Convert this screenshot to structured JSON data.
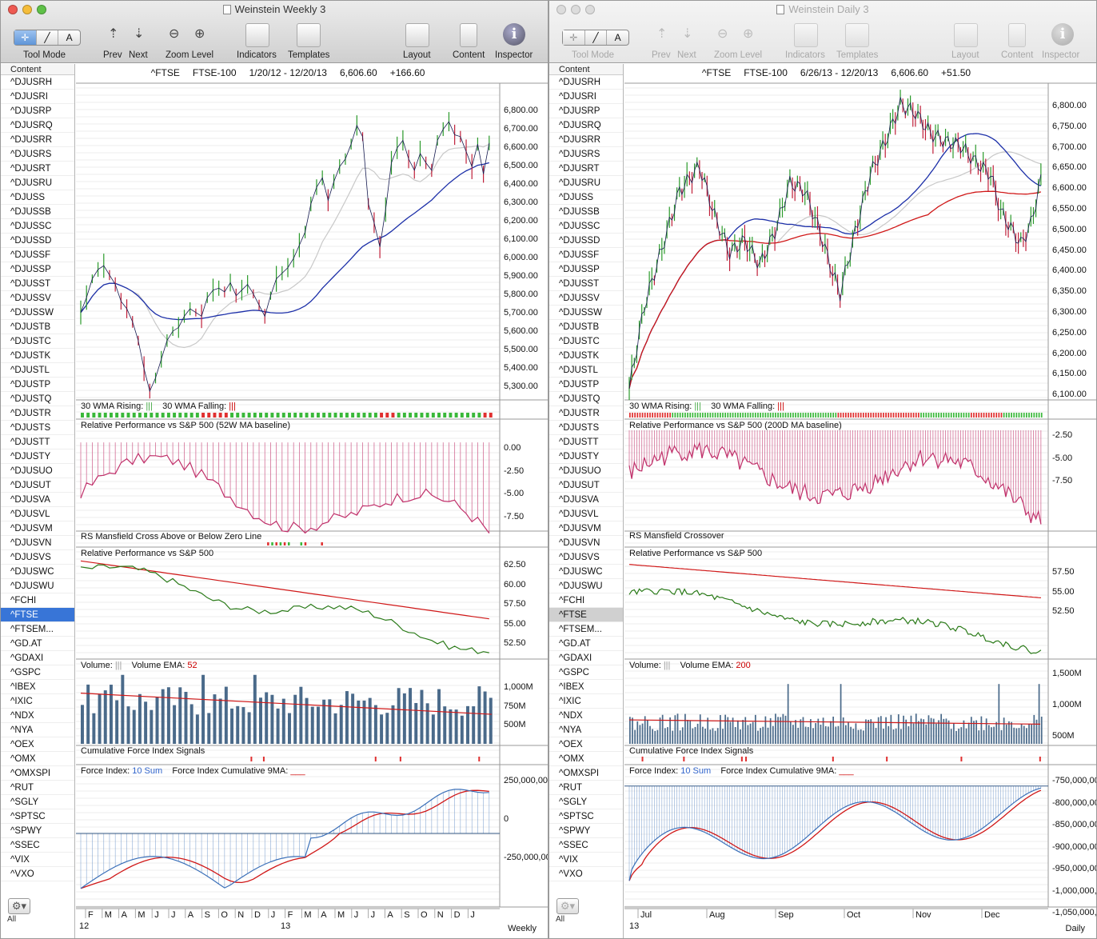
{
  "left": {
    "title": "Weinstein Weekly 3",
    "toolbar": {
      "tool_mode": "Tool Mode",
      "prev": "Prev",
      "next": "Next",
      "zoom_level": "Zoom Level",
      "indicators": "Indicators",
      "templates": "Templates",
      "layout": "Layout",
      "content": "Content",
      "inspector": "Inspector"
    },
    "header": {
      "symbol": "^FTSE",
      "name": "FTSE-100",
      "range": "1/20/12 - 12/20/13",
      "last": "6,606.60",
      "change": "+166.60"
    },
    "price_ticks": [
      "6,800.00",
      "6,700.00",
      "6,600.00",
      "6,500.00",
      "6,400.00",
      "6,300.00",
      "6,200.00",
      "6,100.00",
      "6,000.00",
      "5,900.00",
      "5,800.00",
      "5,700.00",
      "5,600.00",
      "5,500.00",
      "5,400.00",
      "5,300.00"
    ],
    "panes": {
      "wma_rising": "30 WMA Rising:",
      "wma_falling": "30 WMA Falling:",
      "relperf_ma": "Relative Performance vs S&P 500 (52W MA baseline)",
      "relperf_ma_ticks": [
        "0.00",
        "-2.50",
        "-5.00",
        "-7.50"
      ],
      "rs_cross": "RS Mansfield Cross Above or Below Zero Line",
      "relperf": "Relative Performance vs S&P 500",
      "relperf_ticks": [
        "62.50",
        "60.00",
        "57.50",
        "55.00",
        "52.50"
      ],
      "volume": "Volume:",
      "volume_ema": "Volume EMA:",
      "volume_ema_n": "52",
      "volume_ticks": [
        "1,000M",
        "750M",
        "500M"
      ],
      "cfi": "Cumulative Force Index Signals",
      "force": "Force Index:",
      "force_sum": "10 Sum",
      "force_cum": "Force Index Cumulative 9MA:",
      "force_ticks": [
        "250,000,00",
        "0",
        "-250,000,00"
      ]
    },
    "x_months": [
      "F",
      "M",
      "A",
      "M",
      "J",
      "J",
      "A",
      "S",
      "O",
      "N",
      "D",
      "J",
      "F",
      "M",
      "A",
      "M",
      "J",
      "J",
      "A",
      "S",
      "O",
      "N",
      "D",
      "J"
    ],
    "x_years": [
      "12",
      "13"
    ],
    "period": "Weekly",
    "sidebar_all": "All"
  },
  "right": {
    "title": "Weinstein Daily 3",
    "toolbar": {
      "tool_mode": "Tool Mode",
      "prev": "Prev",
      "next": "Next",
      "zoom_level": "Zoom Level",
      "indicators": "Indicators",
      "templates": "Templates",
      "layout": "Layout",
      "content": "Content",
      "inspector": "Inspector"
    },
    "header": {
      "symbol": "^FTSE",
      "name": "FTSE-100",
      "range": "6/26/13 - 12/20/13",
      "last": "6,606.60",
      "change": "+51.50"
    },
    "price_ticks": [
      "6,800.00",
      "6,750.00",
      "6,700.00",
      "6,650.00",
      "6,600.00",
      "6,550.00",
      "6,500.00",
      "6,450.00",
      "6,400.00",
      "6,350.00",
      "6,300.00",
      "6,250.00",
      "6,200.00",
      "6,150.00",
      "6,100.00"
    ],
    "panes": {
      "wma_rising": "30 WMA Rising:",
      "wma_falling": "30 WMA Falling:",
      "relperf_ma": "Relative Performance vs S&P 500 (200D MA baseline)",
      "relperf_ma_ticks": [
        "-2.50",
        "-5.00",
        "-7.50"
      ],
      "rs_cross": "RS Mansfield Crossover",
      "relperf": "Relative Performance vs S&P 500",
      "relperf_ticks": [
        "57.50",
        "55.00",
        "52.50"
      ],
      "volume": "Volume:",
      "volume_ema": "Volume EMA:",
      "volume_ema_n": "200",
      "volume_ticks": [
        "1,500M",
        "1,000M",
        "500M"
      ],
      "cfi": "Cumulative Force Index Signals",
      "force": "Force Index:",
      "force_sum": "10 Sum",
      "force_cum": "Force Index Cumulative 9MA:",
      "force_ticks": [
        "-750,000,00",
        "-800,000,00",
        "-850,000,00",
        "-900,000,00",
        "-950,000,00",
        "-1,000,000,",
        "-1,050,000,"
      ]
    },
    "x_months": [
      "Jul",
      "Aug",
      "Sep",
      "Oct",
      "Nov",
      "Dec"
    ],
    "x_years": [
      "13"
    ],
    "period": "Daily",
    "sidebar_all": "All"
  },
  "sidebar": {
    "header": "Content",
    "items": [
      "^DJUSRH",
      "^DJUSRI",
      "^DJUSRP",
      "^DJUSRQ",
      "^DJUSRR",
      "^DJUSRS",
      "^DJUSRT",
      "^DJUSRU",
      "^DJUSS",
      "^DJUSSB",
      "^DJUSSC",
      "^DJUSSD",
      "^DJUSSF",
      "^DJUSSP",
      "^DJUSST",
      "^DJUSSV",
      "^DJUSSW",
      "^DJUSTB",
      "^DJUSTC",
      "^DJUSTK",
      "^DJUSTL",
      "^DJUSTP",
      "^DJUSTQ",
      "^DJUSTR",
      "^DJUSTS",
      "^DJUSTT",
      "^DJUSTY",
      "^DJUSUO",
      "^DJUSUT",
      "^DJUSVA",
      "^DJUSVL",
      "^DJUSVM",
      "^DJUSVN",
      "^DJUSVS",
      "^DJUSWC",
      "^DJUSWU",
      "^FCHI",
      "^FTSE",
      "^FTSEM...",
      "^GD.AT",
      "^GDAXI",
      "^GSPC",
      "^IBEX",
      "^IXIC",
      "^NDX",
      "^NYA",
      "^OEX",
      "^OMX",
      "^OMXSPI",
      "^RUT",
      "^SGLY",
      "^SPTSC",
      "^SPWY",
      "^SSEC",
      "^VIX",
      "^VXO"
    ],
    "selected": "^FTSE"
  },
  "colors": {
    "up_bar": "#2a9a2a",
    "down_bar": "#c0203a",
    "ma_blue": "#1c2fa8",
    "ma_gray": "#c8c8c8",
    "ma_red": "#d01818",
    "rs_pink": "#c0306a",
    "rs_green": "#2a7a18",
    "vol_bar": "#4a6a8a",
    "force_blue": "#3a6fb8",
    "sel": "#3875d7"
  }
}
